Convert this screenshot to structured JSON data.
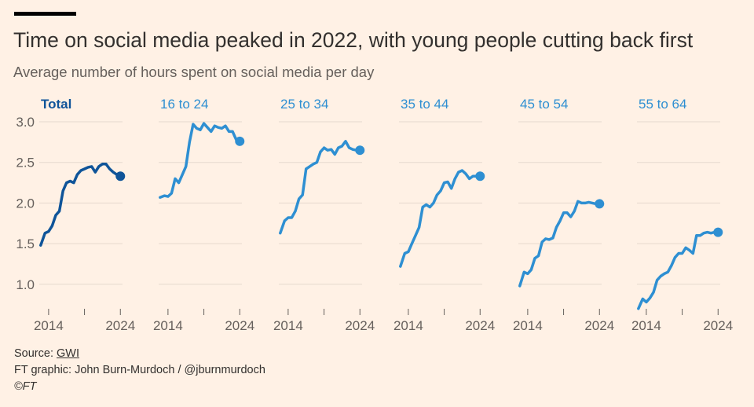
{
  "title": "Time on social media peaked in 2022, with young people cutting back first",
  "subtitle": "Average number of hours spent on social media per day",
  "footer": {
    "source_label": "Source: ",
    "source_link": "GWI",
    "credit": "FT graphic: John Burn-Murdoch / @jburnmurdoch",
    "copyright": "©FT"
  },
  "chart_data": {
    "type": "line",
    "layout": "small multiples",
    "ylim": [
      0.67,
      3.05
    ],
    "xlim": [
      2012.7,
      2024.3
    ],
    "yticks": [
      1.0,
      1.5,
      2.0,
      2.5,
      3.0
    ],
    "ytick_labels": [
      "1.0",
      "1.5",
      "2.0",
      "2.5",
      "3.0"
    ],
    "xticks": [
      2014,
      2019,
      2024
    ],
    "xtick_labels": [
      "2014",
      "",
      "2024"
    ],
    "grid": true,
    "end_marker": "dot",
    "colors": {
      "total": "#0f5499",
      "age": "#2e8fd2",
      "grid": "#e6d9ce",
      "background": "#fff1e5"
    },
    "x": [
      2012.9,
      2013.5,
      2014,
      2014.5,
      2015,
      2015.5,
      2016,
      2016.5,
      2017,
      2017.5,
      2018,
      2018.5,
      2019,
      2019.5,
      2020,
      2020.5,
      2021,
      2021.5,
      2022,
      2022.5,
      2023,
      2023.5,
      2024
    ],
    "series": [
      {
        "name": "Total",
        "values": [
          1.48,
          1.63,
          1.65,
          1.72,
          1.85,
          1.9,
          2.15,
          2.25,
          2.27,
          2.25,
          2.35,
          2.4,
          2.42,
          2.44,
          2.45,
          2.38,
          2.45,
          2.48,
          2.48,
          2.42,
          2.38,
          2.35,
          2.33
        ]
      },
      {
        "name": "16 to 24",
        "values": [
          2.07,
          2.09,
          2.08,
          2.12,
          2.3,
          2.25,
          2.35,
          2.45,
          2.75,
          2.97,
          2.92,
          2.9,
          2.98,
          2.93,
          2.88,
          2.95,
          2.93,
          2.92,
          2.95,
          2.88,
          2.88,
          2.78,
          2.76
        ]
      },
      {
        "name": "25 to 34",
        "values": [
          1.63,
          1.78,
          1.82,
          1.82,
          1.9,
          2.05,
          2.1,
          2.42,
          2.45,
          2.48,
          2.5,
          2.63,
          2.68,
          2.65,
          2.66,
          2.6,
          2.68,
          2.7,
          2.76,
          2.68,
          2.66,
          2.65,
          2.65
        ]
      },
      {
        "name": "35 to 44",
        "values": [
          1.22,
          1.38,
          1.4,
          1.5,
          1.6,
          1.7,
          1.95,
          1.98,
          1.95,
          2.0,
          2.1,
          2.15,
          2.25,
          2.26,
          2.18,
          2.3,
          2.38,
          2.4,
          2.36,
          2.3,
          2.33,
          2.33,
          2.33
        ]
      },
      {
        "name": "45 to 54",
        "values": [
          0.98,
          1.15,
          1.13,
          1.18,
          1.32,
          1.35,
          1.52,
          1.56,
          1.55,
          1.57,
          1.7,
          1.78,
          1.88,
          1.88,
          1.83,
          1.9,
          2.02,
          2.0,
          2.0,
          2.01,
          2.0,
          1.99,
          1.99
        ]
      },
      {
        "name": "55 to 64",
        "values": [
          0.7,
          0.82,
          0.78,
          0.83,
          0.9,
          1.05,
          1.1,
          1.13,
          1.15,
          1.23,
          1.33,
          1.38,
          1.38,
          1.45,
          1.42,
          1.38,
          1.6,
          1.6,
          1.63,
          1.64,
          1.63,
          1.64,
          1.64
        ]
      }
    ]
  }
}
